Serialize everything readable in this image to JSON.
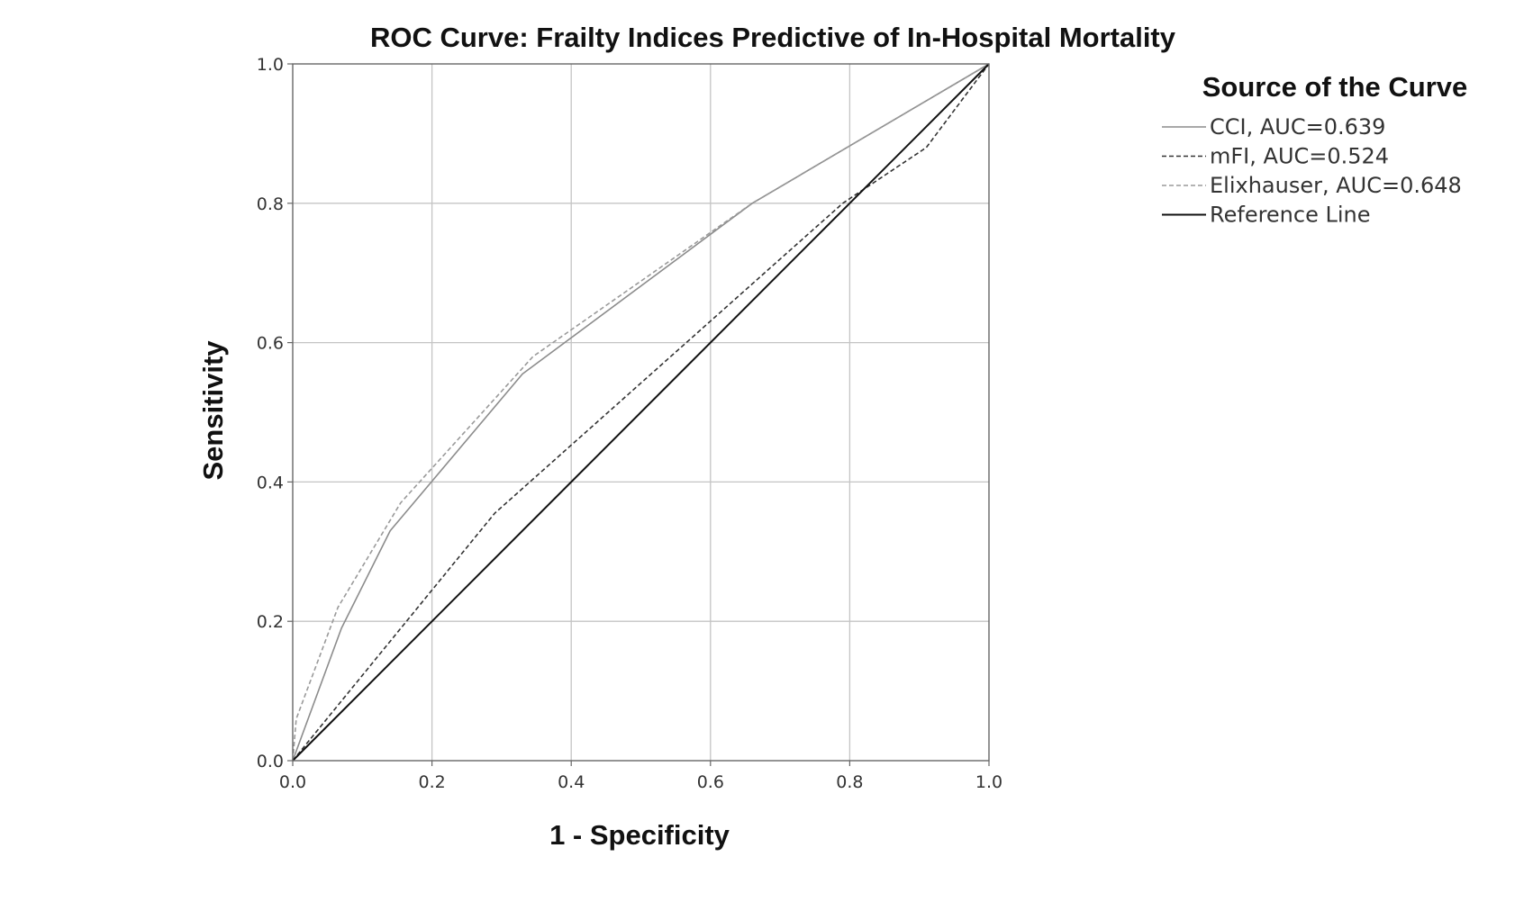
{
  "chart_data": {
    "type": "line",
    "title": "ROC Curve: Frailty Indices Predictive of In-Hospital Mortality",
    "xlabel": "1 - Specificity",
    "ylabel": "Sensitivity",
    "xlim": [
      0,
      1
    ],
    "ylim": [
      0,
      1
    ],
    "x_ticks": [
      "0.0",
      "0.2",
      "0.4",
      "0.6",
      "0.8",
      "1.0"
    ],
    "y_ticks": [
      "0.0",
      "0.2",
      "0.4",
      "0.6",
      "0.8",
      "1.0"
    ],
    "grid": true,
    "legend": {
      "title": "Source of the Curve",
      "placement": "right"
    },
    "series": [
      {
        "name": "CCI, AUC=0.639",
        "style": "solid",
        "color": "#8c8c8c",
        "points": [
          [
            0,
            0
          ],
          [
            0.07,
            0.19
          ],
          [
            0.14,
            0.33
          ],
          [
            0.33,
            0.555
          ],
          [
            0.66,
            0.8
          ],
          [
            1.0,
            1.0
          ]
        ]
      },
      {
        "name": "mFI, AUC=0.524",
        "style": "dashed",
        "color": "#333333",
        "points": [
          [
            0,
            0
          ],
          [
            0.29,
            0.355
          ],
          [
            0.79,
            0.8
          ],
          [
            0.91,
            0.88
          ],
          [
            1.0,
            1.0
          ]
        ]
      },
      {
        "name": "Elixhauser, AUC=0.648",
        "style": "dashed",
        "color": "#9a9a9a",
        "points": [
          [
            0,
            0
          ],
          [
            0.005,
            0.06
          ],
          [
            0.065,
            0.22
          ],
          [
            0.155,
            0.37
          ],
          [
            0.345,
            0.58
          ],
          [
            0.66,
            0.8
          ],
          [
            1.0,
            1.0
          ]
        ]
      },
      {
        "name": "Reference Line",
        "style": "solid",
        "color": "#111111",
        "points": [
          [
            0,
            0
          ],
          [
            1.0,
            1.0
          ]
        ]
      }
    ]
  }
}
